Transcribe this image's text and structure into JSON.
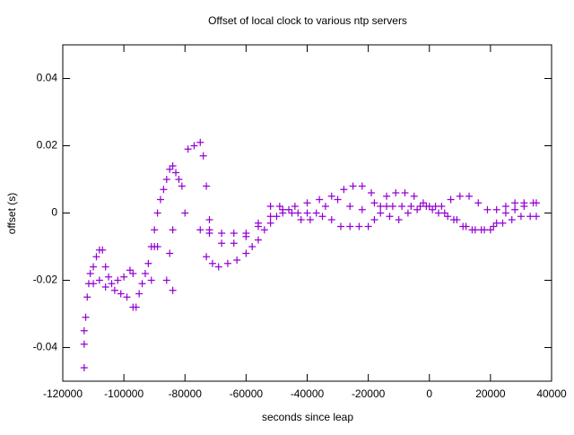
{
  "chart_data": {
    "type": "scatter",
    "title": "Offset of local clock to various ntp servers",
    "x_label": "seconds since leap",
    "y_label": "offset (s)",
    "xlim": [
      -120000,
      40000
    ],
    "ylim": [
      -0.05,
      0.05
    ],
    "xticks": [
      -120000,
      -100000,
      -80000,
      -60000,
      -40000,
      -20000,
      0,
      20000,
      40000
    ],
    "yticks": [
      -0.04,
      -0.02,
      0,
      0.02,
      0.04
    ],
    "grid": false,
    "series": [
      {
        "color": "#9400d3",
        "x": [
          -113000,
          -113000,
          -113000,
          -112500,
          -112000,
          -111500,
          -111000,
          -110000,
          -109000,
          -108000,
          -107000,
          -106000,
          -105000,
          -110000,
          -108000,
          -104000,
          -102000,
          -100000,
          -98000,
          -97000,
          -106000,
          -103000,
          -101000,
          -99000,
          -97000,
          -96000,
          -95000,
          -94000,
          -93000,
          -92000,
          -91000,
          -90000,
          -89000,
          -91000,
          -90000,
          -89000,
          -88000,
          -87000,
          -86000,
          -85000,
          -84000,
          -83000,
          -82000,
          -81000,
          -84000,
          -86000,
          -85000,
          -84000,
          -80000,
          -79000,
          -77000,
          -75000,
          -74000,
          -73000,
          -72000,
          -75000,
          -73000,
          -71000,
          -69000,
          -66000,
          -63000,
          -60000,
          -58000,
          -56000,
          -54000,
          -52000,
          -50000,
          -48000,
          -45000,
          -42000,
          -39000,
          -35000,
          -32000,
          -29000,
          -26000,
          -23000,
          -20000,
          -18000,
          -16000,
          -14000,
          -12000,
          -9000,
          -6000,
          -3000,
          0,
          3000,
          6000,
          9000,
          12000,
          15000,
          18000,
          21000,
          24000,
          27000,
          30000,
          33000,
          35000,
          -72000,
          -68000,
          -64000,
          -60000,
          -56000,
          -52000,
          -48000,
          -44000,
          -40000,
          -36000,
          -32000,
          -28000,
          -25000,
          -22000,
          -19000,
          -16000,
          -13000,
          -10000,
          -7000,
          -4000,
          -1000,
          2000,
          5000,
          8000,
          11000,
          14000,
          17000,
          20000,
          22000,
          25000,
          28000,
          31000,
          34000,
          -72000,
          -68000,
          -64000,
          -60000,
          -56000,
          -52000,
          -49000,
          -46000,
          -43000,
          -40000,
          -37000,
          -34000,
          -30000,
          -26000,
          -22000,
          -18000,
          -14000,
          -11000,
          -8000,
          -5000,
          -2000,
          1000,
          4000,
          7000,
          10000,
          13000,
          16000,
          19000,
          22000,
          25000,
          28000,
          31000,
          35000
        ],
        "values": [
          -0.046,
          -0.039,
          -0.035,
          -0.031,
          -0.025,
          -0.021,
          -0.018,
          -0.016,
          -0.013,
          -0.011,
          -0.011,
          -0.016,
          -0.019,
          -0.021,
          -0.02,
          -0.021,
          -0.02,
          -0.019,
          -0.017,
          -0.018,
          -0.022,
          -0.023,
          -0.024,
          -0.025,
          -0.028,
          -0.028,
          -0.024,
          -0.021,
          -0.018,
          -0.015,
          -0.01,
          -0.01,
          -0.01,
          -0.02,
          -0.005,
          0,
          0.004,
          0.007,
          0.01,
          0.013,
          0.014,
          0.012,
          0.01,
          0.008,
          -0.023,
          -0.02,
          -0.012,
          -0.005,
          0,
          0.019,
          0.02,
          0.021,
          0.017,
          0.008,
          -0.002,
          -0.005,
          -0.013,
          -0.015,
          -0.016,
          -0.015,
          -0.014,
          -0.012,
          -0.01,
          -0.008,
          -0.005,
          -0.003,
          -0.001,
          0,
          0,
          -0.002,
          -0.002,
          -0.001,
          -0.002,
          -0.004,
          -0.004,
          -0.004,
          -0.004,
          -0.002,
          0,
          0.002,
          0.002,
          0.002,
          0.002,
          0.002,
          0.002,
          0,
          -0.001,
          -0.002,
          -0.004,
          -0.005,
          -0.005,
          -0.004,
          -0.003,
          -0.002,
          -0.001,
          -0.001,
          -0.001,
          -0.006,
          -0.009,
          -0.009,
          -0.007,
          -0.004,
          -0.001,
          0.001,
          0.002,
          0.003,
          0.004,
          0.005,
          0.007,
          0.008,
          0.008,
          0.006,
          0.002,
          -0.001,
          -0.002,
          0,
          0.001,
          0.002,
          0.002,
          0,
          -0.002,
          -0.004,
          -0.005,
          -0.005,
          -0.005,
          -0.003,
          0,
          0.001,
          0.002,
          0.003,
          -0.005,
          -0.006,
          -0.006,
          -0.006,
          -0.003,
          0.002,
          0.002,
          0.001,
          0,
          0,
          0,
          0.002,
          0.004,
          0.002,
          0.001,
          0.003,
          0.005,
          0.006,
          0.006,
          0.005,
          0.003,
          0.001,
          0.002,
          0.004,
          0.005,
          0.005,
          0.003,
          0.001,
          0.001,
          0.002,
          0.003,
          0.003,
          0.003
        ]
      }
    ]
  }
}
